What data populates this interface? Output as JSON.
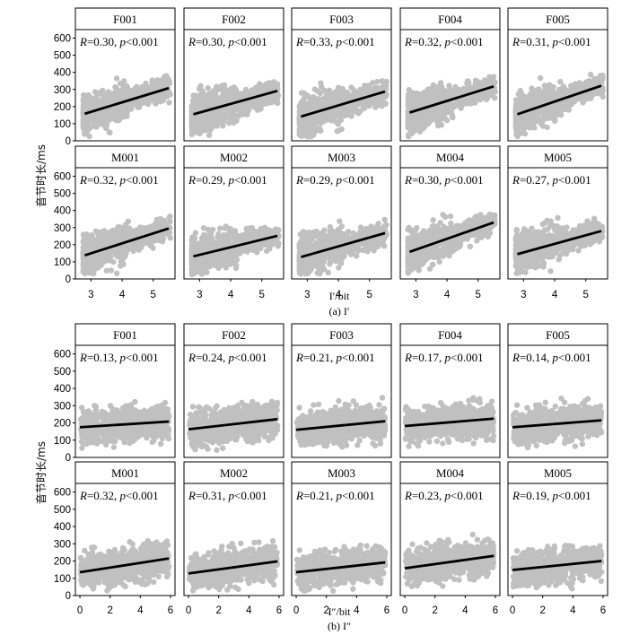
{
  "colors": {
    "points": "#c0c0c0",
    "line": "#000000",
    "frame": "#000000",
    "strip": "#ffffff"
  },
  "figure": {
    "ylabel": "音节时长/ms",
    "panel_a": {
      "caption": "(a) I′",
      "xlabel": "I′/bit"
    },
    "panel_b": {
      "caption": "(b) I″",
      "xlabel": "I″/bit"
    }
  },
  "chart_data": [
    {
      "type": "scatter",
      "title": "(a) I′",
      "xlabel": "I′/bit",
      "ylabel": "音节时长/ms",
      "xlim": [
        2.5,
        5.7
      ],
      "ylim": [
        0,
        650
      ],
      "xticks": [
        3,
        4,
        5
      ],
      "yticks": [
        0,
        100,
        200,
        300,
        400,
        500,
        600
      ],
      "grid": false,
      "facets": [
        {
          "id": "F001",
          "annotation": "R=0.30, p<0.001",
          "r_label": "R",
          "stat_text": "=0.30, ",
          "p_label": "p",
          "p_text": "<0.001",
          "fit": {
            "x": [
              2.8,
              5.5
            ],
            "y": [
              158,
              308
            ]
          }
        },
        {
          "id": "F002",
          "annotation": "R=0.30, p<0.001",
          "r_label": "R",
          "stat_text": "=0.30, ",
          "p_label": "p",
          "p_text": "<0.001",
          "fit": {
            "x": [
              2.8,
              5.5
            ],
            "y": [
              155,
              292
            ]
          }
        },
        {
          "id": "F003",
          "annotation": "R=0.33, p<0.001",
          "r_label": "R",
          "stat_text": "=0.33, ",
          "p_label": "p",
          "p_text": "<0.001",
          "fit": {
            "x": [
              2.8,
              5.5
            ],
            "y": [
              142,
              288
            ]
          }
        },
        {
          "id": "F004",
          "annotation": "R=0.32, p<0.001",
          "r_label": "R",
          "stat_text": "=0.32, ",
          "p_label": "p",
          "p_text": "<0.001",
          "fit": {
            "x": [
              2.8,
              5.5
            ],
            "y": [
              165,
              318
            ]
          }
        },
        {
          "id": "F005",
          "annotation": "R=0.31, p<0.001",
          "r_label": "R",
          "stat_text": "=0.31, ",
          "p_label": "p",
          "p_text": "<0.001",
          "fit": {
            "x": [
              2.8,
              5.5
            ],
            "y": [
              155,
              322
            ]
          }
        },
        {
          "id": "M001",
          "annotation": "R=0.32, p<0.001",
          "r_label": "R",
          "stat_text": "=0.32, ",
          "p_label": "p",
          "p_text": "<0.001",
          "fit": {
            "x": [
              2.8,
              5.5
            ],
            "y": [
              138,
              295
            ]
          }
        },
        {
          "id": "M002",
          "annotation": "R=0.29, p<0.001",
          "r_label": "R",
          "stat_text": "=0.29, ",
          "p_label": "p",
          "p_text": "<0.001",
          "fit": {
            "x": [
              2.8,
              5.5
            ],
            "y": [
              132,
              252
            ]
          }
        },
        {
          "id": "M003",
          "annotation": "R=0.29, p<0.001",
          "r_label": "R",
          "stat_text": "=0.29, ",
          "p_label": "p",
          "p_text": "<0.001",
          "fit": {
            "x": [
              2.8,
              5.5
            ],
            "y": [
              128,
              268
            ]
          }
        },
        {
          "id": "M004",
          "annotation": "R=0.30, p<0.001",
          "r_label": "R",
          "stat_text": "=0.30, ",
          "p_label": "p",
          "p_text": "<0.001",
          "fit": {
            "x": [
              2.8,
              5.5
            ],
            "y": [
              158,
              330
            ]
          }
        },
        {
          "id": "M005",
          "annotation": "R=0.27, p<0.001",
          "r_label": "R",
          "stat_text": "=0.27, ",
          "p_label": "p",
          "p_text": "<0.001",
          "fit": {
            "x": [
              2.8,
              5.5
            ],
            "y": [
              145,
              280
            ]
          }
        }
      ]
    },
    {
      "type": "scatter",
      "title": "(b) I″",
      "xlabel": "I″/bit",
      "ylabel": "音节时长/ms",
      "xlim": [
        -0.3,
        6.3
      ],
      "ylim": [
        0,
        650
      ],
      "xticks": [
        0,
        2,
        4,
        6
      ],
      "yticks": [
        0,
        100,
        200,
        300,
        400,
        500,
        600
      ],
      "grid": false,
      "facets": [
        {
          "id": "F001",
          "annotation": "R=0.13, p<0.001",
          "r_label": "R",
          "stat_text": "=0.13, ",
          "p_label": "p",
          "p_text": "<0.001",
          "fit": {
            "x": [
              0,
              5.9
            ],
            "y": [
              175,
              208
            ]
          }
        },
        {
          "id": "F002",
          "annotation": "R=0.24, p<0.001",
          "r_label": "R",
          "stat_text": "=0.24, ",
          "p_label": "p",
          "p_text": "<0.001",
          "fit": {
            "x": [
              0,
              5.9
            ],
            "y": [
              163,
              222
            ]
          }
        },
        {
          "id": "F003",
          "annotation": "R=0.21, p<0.001",
          "r_label": "R",
          "stat_text": "=0.21, ",
          "p_label": "p",
          "p_text": "<0.001",
          "fit": {
            "x": [
              0,
              5.9
            ],
            "y": [
              160,
              210
            ]
          }
        },
        {
          "id": "F004",
          "annotation": "R=0.17, p<0.001",
          "r_label": "R",
          "stat_text": "=0.17, ",
          "p_label": "p",
          "p_text": "<0.001",
          "fit": {
            "x": [
              0,
              5.9
            ],
            "y": [
              182,
              225
            ]
          }
        },
        {
          "id": "F005",
          "annotation": "R=0.14, p<0.001",
          "r_label": "R",
          "stat_text": "=0.14, ",
          "p_label": "p",
          "p_text": "<0.001",
          "fit": {
            "x": [
              0,
              5.9
            ],
            "y": [
              175,
              215
            ]
          }
        },
        {
          "id": "M001",
          "annotation": "R=0.32, p<0.001",
          "r_label": "R",
          "stat_text": "=0.32, ",
          "p_label": "p",
          "p_text": "<0.001",
          "fit": {
            "x": [
              0,
              5.9
            ],
            "y": [
              135,
              215
            ]
          }
        },
        {
          "id": "M002",
          "annotation": "R=0.31, p<0.001",
          "r_label": "R",
          "stat_text": "=0.31, ",
          "p_label": "p",
          "p_text": "<0.001",
          "fit": {
            "x": [
              0,
              5.9
            ],
            "y": [
              128,
              198
            ]
          }
        },
        {
          "id": "M003",
          "annotation": "R=0.21, p<0.001",
          "r_label": "R",
          "stat_text": "=0.21, ",
          "p_label": "p",
          "p_text": "<0.001",
          "fit": {
            "x": [
              0,
              5.9
            ],
            "y": [
              135,
              192
            ]
          }
        },
        {
          "id": "M004",
          "annotation": "R=0.23, p<0.001",
          "r_label": "R",
          "stat_text": "=0.23, ",
          "p_label": "p",
          "p_text": "<0.001",
          "fit": {
            "x": [
              0,
              5.9
            ],
            "y": [
              158,
              230
            ]
          }
        },
        {
          "id": "M005",
          "annotation": "R=0.19, p<0.001",
          "r_label": "R",
          "stat_text": "=0.19, ",
          "p_label": "p",
          "p_text": "<0.001",
          "fit": {
            "x": [
              0,
              5.9
            ],
            "y": [
              148,
              200
            ]
          }
        }
      ]
    }
  ]
}
